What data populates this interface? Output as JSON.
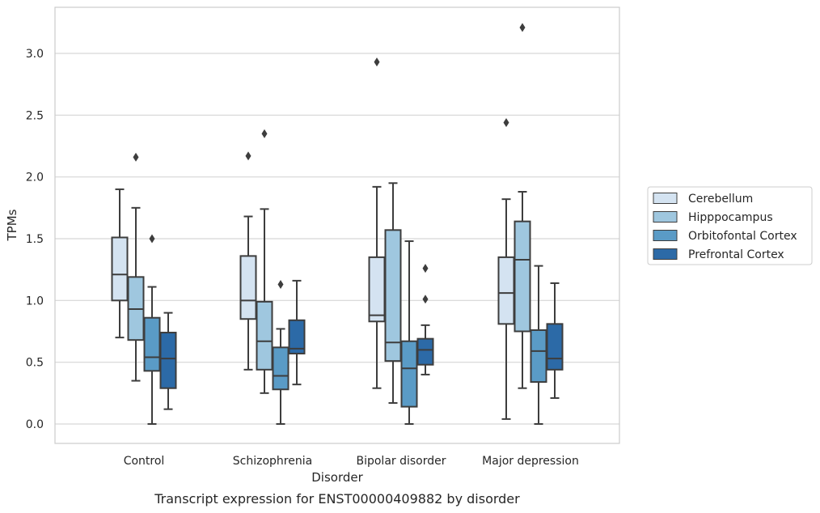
{
  "chart_data": {
    "type": "box",
    "title": "",
    "caption": "Transcript expression for ENST00000409882 by disorder",
    "xlabel": "Disorder",
    "ylabel": "TPMs",
    "ylim": [
      -0.15,
      3.38
    ],
    "yticks": [
      "0.0",
      "0.5",
      "1.0",
      "1.5",
      "2.0",
      "2.5",
      "3.0"
    ],
    "ytick_values": [
      0,
      0.5,
      1.0,
      1.5,
      2.0,
      2.5,
      3.0
    ],
    "grid": "horizontal",
    "legend_position": "right",
    "categories": [
      "Control",
      "Schizophrenia",
      "Bipolar disorder",
      "Major depression"
    ],
    "series": [
      {
        "name": "Cerebellum",
        "color": "#d4e3f1",
        "boxes": [
          {
            "whislo": 0.7,
            "q1": 1.0,
            "med": 1.21,
            "q3": 1.51,
            "whishi": 1.9,
            "fliers": []
          },
          {
            "whislo": 0.44,
            "q1": 0.85,
            "med": 1.0,
            "q3": 1.36,
            "whishi": 1.68,
            "fliers": [
              2.17
            ]
          },
          {
            "whislo": 0.29,
            "q1": 0.83,
            "med": 0.88,
            "q3": 1.35,
            "whishi": 1.92,
            "fliers": [
              2.93
            ]
          },
          {
            "whislo": 0.04,
            "q1": 0.81,
            "med": 1.06,
            "q3": 1.35,
            "whishi": 1.82,
            "fliers": [
              2.44
            ]
          }
        ]
      },
      {
        "name": "Hipppocampus",
        "color": "#9fc7df",
        "boxes": [
          {
            "whislo": 0.35,
            "q1": 0.68,
            "med": 0.93,
            "q3": 1.19,
            "whishi": 1.75,
            "fliers": [
              2.16
            ]
          },
          {
            "whislo": 0.25,
            "q1": 0.44,
            "med": 0.67,
            "q3": 0.99,
            "whishi": 1.74,
            "fliers": [
              2.35
            ]
          },
          {
            "whislo": 0.17,
            "q1": 0.51,
            "med": 0.66,
            "q3": 1.57,
            "whishi": 1.95,
            "fliers": []
          },
          {
            "whislo": 0.29,
            "q1": 0.75,
            "med": 1.33,
            "q3": 1.64,
            "whishi": 1.88,
            "fliers": [
              3.21
            ]
          }
        ]
      },
      {
        "name": "Orbitofontal Cortex",
        "color": "#5a9bc6",
        "boxes": [
          {
            "whislo": 0.0,
            "q1": 0.43,
            "med": 0.54,
            "q3": 0.86,
            "whishi": 1.11,
            "fliers": [
              1.5
            ]
          },
          {
            "whislo": 0.0,
            "q1": 0.28,
            "med": 0.39,
            "q3": 0.62,
            "whishi": 0.77,
            "fliers": [
              1.13
            ]
          },
          {
            "whislo": 0.0,
            "q1": 0.14,
            "med": 0.45,
            "q3": 0.67,
            "whishi": 1.48,
            "fliers": []
          },
          {
            "whislo": 0.0,
            "q1": 0.34,
            "med": 0.59,
            "q3": 0.76,
            "whishi": 1.28,
            "fliers": []
          }
        ]
      },
      {
        "name": "Prefrontal Cortex",
        "color": "#2c6aa7",
        "boxes": [
          {
            "whislo": 0.12,
            "q1": 0.29,
            "med": 0.53,
            "q3": 0.74,
            "whishi": 0.9,
            "fliers": []
          },
          {
            "whislo": 0.32,
            "q1": 0.57,
            "med": 0.61,
            "q3": 0.84,
            "whishi": 1.16,
            "fliers": []
          },
          {
            "whislo": 0.4,
            "q1": 0.48,
            "med": 0.6,
            "q3": 0.69,
            "whishi": 0.8,
            "fliers": [
              1.01,
              1.26
            ]
          },
          {
            "whislo": 0.21,
            "q1": 0.44,
            "med": 0.53,
            "q3": 0.81,
            "whishi": 1.14,
            "fliers": []
          }
        ]
      }
    ]
  }
}
